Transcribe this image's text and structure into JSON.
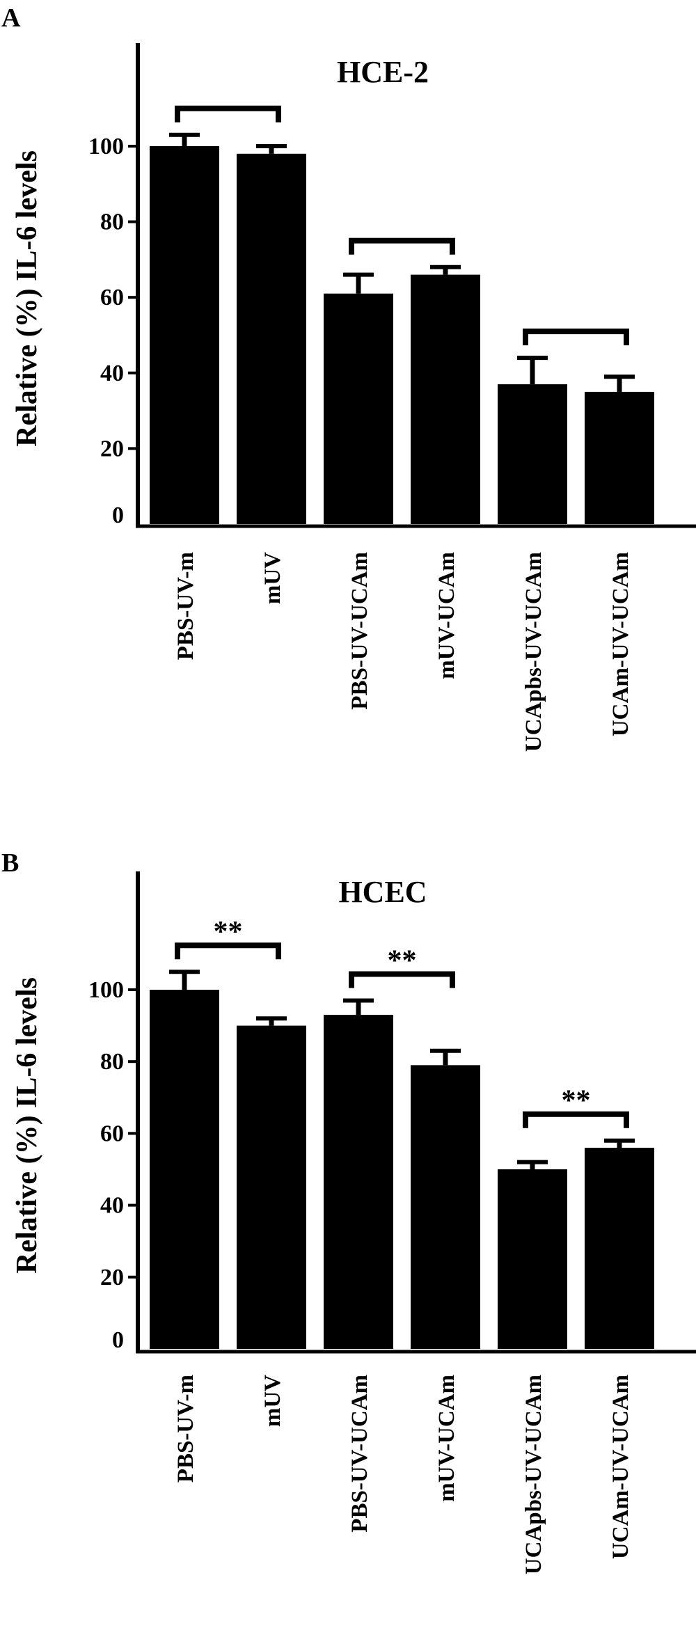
{
  "panels": [
    {
      "letter": "A",
      "chart_data": {
        "type": "bar",
        "title": "HCE-2",
        "ylabel": "Relative (%) IL-6 levels",
        "xlabel": "",
        "categories": [
          "PBS-UV-m",
          "mUV",
          "PBS-UV-UCAm",
          "mUV-UCAm",
          "UCApbs-UV-UCAm",
          "UCAm-UV-UCAm"
        ],
        "values": [
          100,
          98,
          61,
          66,
          37,
          35
        ],
        "errors": [
          3,
          2,
          5,
          2,
          7,
          4
        ],
        "ylim": [
          0,
          120
        ],
        "yticks": [
          "0",
          "20",
          "40",
          "60",
          "80",
          "100"
        ],
        "comparisons": [
          {
            "from": 0,
            "to": 1,
            "label": ""
          },
          {
            "from": 2,
            "to": 3,
            "label": ""
          },
          {
            "from": 4,
            "to": 5,
            "label": ""
          }
        ],
        "bar_color": "#000000",
        "grid": false,
        "legend": "none"
      }
    },
    {
      "letter": "B",
      "chart_data": {
        "type": "bar",
        "title": "HCEC",
        "ylabel": "Relative (%) IL-6 levels",
        "xlabel": "",
        "categories": [
          "PBS-UV-m",
          "mUV",
          "PBS-UV-UCAm",
          "mUV-UCAm",
          "UCApbs-UV-UCAm",
          "UCAm-UV-UCAm"
        ],
        "values": [
          100,
          90,
          93,
          79,
          50,
          56
        ],
        "errors": [
          5,
          2,
          4,
          4,
          2,
          2
        ],
        "ylim": [
          0,
          120
        ],
        "yticks": [
          "0",
          "20",
          "40",
          "60",
          "80",
          "100"
        ],
        "comparisons": [
          {
            "from": 0,
            "to": 1,
            "label": "**"
          },
          {
            "from": 2,
            "to": 3,
            "label": "**"
          },
          {
            "from": 4,
            "to": 5,
            "label": "**"
          }
        ],
        "bar_color": "#000000",
        "grid": false,
        "legend": "none"
      }
    }
  ]
}
